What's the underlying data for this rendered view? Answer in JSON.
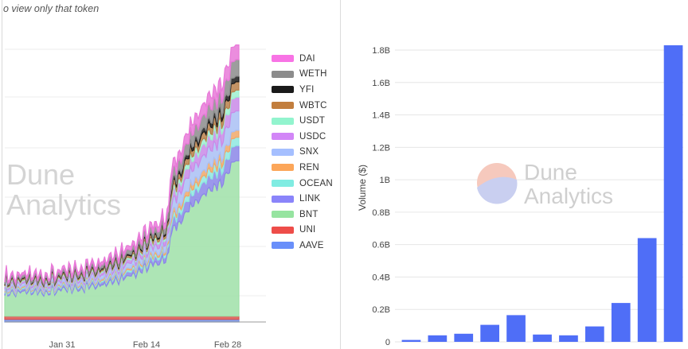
{
  "left_panel": {
    "subtitle": "o view only that token",
    "watermark_line1": "Dune",
    "watermark_line2": "Analytics"
  },
  "right_panel": {
    "watermark_line1": "Dune",
    "watermark_line2": "Analytics"
  },
  "chart_data": [
    {
      "type": "area",
      "stacked": true,
      "x_ticks": [
        "Jan 31",
        "Feb 14",
        "Feb 28"
      ],
      "legend_position": "right",
      "grid": true,
      "series": [
        {
          "name": "DAI",
          "color": "#e879d8"
        },
        {
          "name": "WETH",
          "color": "#8c8c8c"
        },
        {
          "name": "YFI",
          "color": "#1a1a1a"
        },
        {
          "name": "WBTC",
          "color": "#b8804a"
        },
        {
          "name": "USDT",
          "color": "#9ef0d0"
        },
        {
          "name": "USDC",
          "color": "#c98ae8"
        },
        {
          "name": "SNX",
          "color": "#a9bff5"
        },
        {
          "name": "REN",
          "color": "#f0a868"
        },
        {
          "name": "OCEAN",
          "color": "#8ee8e0"
        },
        {
          "name": "LINK",
          "color": "#8b86e8"
        },
        {
          "name": "BNT",
          "color": "#9fe0a8"
        },
        {
          "name": "UNI",
          "color": "#d9534f"
        },
        {
          "name": "AAVE",
          "color": "#6f8fe8"
        }
      ]
    },
    {
      "type": "bar",
      "ylabel": "Volume ($)",
      "y_ticks": [
        "0",
        "0.2B",
        "0.4B",
        "0.6B",
        "0.8B",
        "1B",
        "1.2B",
        "1.4B",
        "1.6B",
        "1.8B"
      ],
      "ylim": [
        0,
        1.8
      ],
      "values": [
        0.012,
        0.04,
        0.05,
        0.105,
        0.165,
        0.045,
        0.04,
        0.095,
        0.24,
        0.64,
        1.83
      ],
      "bar_color": "#4f6ef7",
      "grid": true
    }
  ]
}
